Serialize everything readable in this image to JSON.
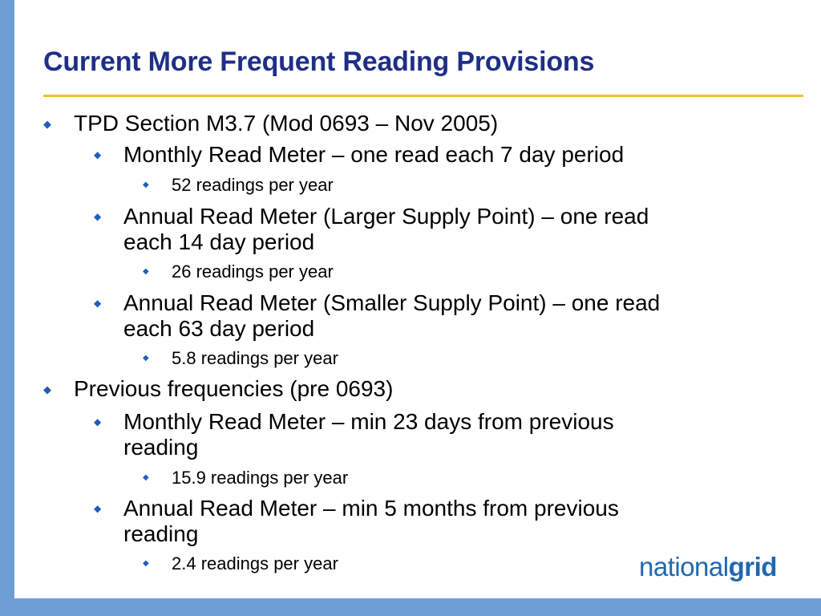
{
  "slide": {
    "title": "Current More Frequent Reading Provisions",
    "bullets": {
      "b1": "TPD Section M3.7 (Mod 0693 – Nov 2005)",
      "b1_1": "Monthly Read Meter – one read each 7 day period",
      "b1_1_1": "52 readings per year",
      "b1_2_line1": "Annual Read Meter (Larger Supply Point) – one read",
      "b1_2_line2": "each 14 day period",
      "b1_2_1": "26 readings per year",
      "b1_3_line1": "Annual Read Meter (Smaller Supply Point) – one read",
      "b1_3_line2": "each 63 day period",
      "b1_3_1": "5.8 readings per year",
      "b2": "Previous frequencies (pre 0693)",
      "b2_1_line1": "Monthly Read Meter – min 23 days from previous",
      "b2_1_line2": "reading",
      "b2_1_1": "15.9 readings per year",
      "b2_2_line1": "Annual Read Meter – min 5 months from previous",
      "b2_2_line2": "reading",
      "b2_2_1": "2.4 readings per year"
    },
    "bullet_glyph": "◆"
  },
  "logo": {
    "part1": "national",
    "part2": "grid"
  },
  "colors": {
    "title": "#1f2f86",
    "bullet": "#1e5fb6",
    "accent_rule": "#f1c232",
    "frame": "#6d9fd6",
    "logo": "#1f67b1"
  }
}
